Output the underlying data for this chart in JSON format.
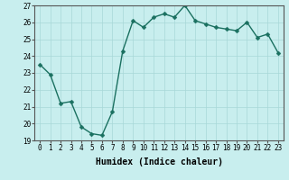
{
  "x": [
    0,
    1,
    2,
    3,
    4,
    5,
    6,
    7,
    8,
    9,
    10,
    11,
    12,
    13,
    14,
    15,
    16,
    17,
    18,
    19,
    20,
    21,
    22,
    23
  ],
  "y": [
    23.5,
    22.9,
    21.2,
    21.3,
    19.8,
    19.4,
    19.3,
    20.7,
    24.3,
    26.1,
    25.7,
    26.3,
    26.5,
    26.3,
    27.0,
    26.1,
    25.9,
    25.7,
    25.6,
    25.5,
    26.0,
    25.1,
    25.3,
    24.2
  ],
  "xlabel": "Humidex (Indice chaleur)",
  "ylim": [
    19,
    27
  ],
  "xlim_min": -0.5,
  "xlim_max": 23.5,
  "yticks": [
    19,
    20,
    21,
    22,
    23,
    24,
    25,
    26,
    27
  ],
  "xticks": [
    0,
    1,
    2,
    3,
    4,
    5,
    6,
    7,
    8,
    9,
    10,
    11,
    12,
    13,
    14,
    15,
    16,
    17,
    18,
    19,
    20,
    21,
    22,
    23
  ],
  "line_color": "#1a7060",
  "marker_color": "#1a7060",
  "bg_color": "#c8eeee",
  "grid_color": "#a8d8d8",
  "xlabel_fontsize": 7,
  "tick_fontsize": 5.5,
  "line_width": 1.0,
  "marker_size": 2.5
}
